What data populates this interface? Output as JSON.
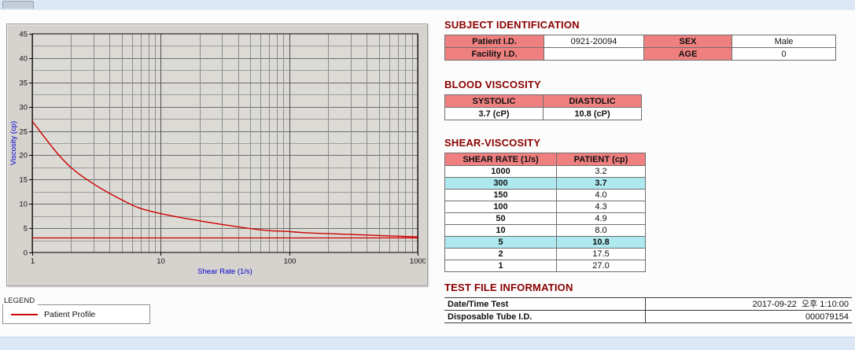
{
  "chart": {
    "legend_title": "LEGEND",
    "legend_series": "Patient Profile"
  },
  "chart_data": {
    "type": "line",
    "xlabel": "Shear Rate (1/s)",
    "ylabel": "Viscosity (cp)",
    "xscale": "log",
    "xlim": [
      1,
      1000
    ],
    "ylim": [
      0,
      45
    ],
    "xticks": [
      1,
      10,
      100,
      1000
    ],
    "yticks": [
      0,
      5,
      10,
      15,
      20,
      25,
      30,
      35,
      40,
      45
    ],
    "grid": true,
    "legend_position": "below-left",
    "x": [
      1,
      2,
      5,
      10,
      50,
      100,
      150,
      300,
      1000
    ],
    "series": [
      {
        "name": "Patient Profile",
        "color": "#cc0000",
        "values": [
          27.0,
          17.5,
          10.8,
          8.0,
          4.9,
          4.3,
          4.0,
          3.7,
          3.2
        ]
      }
    ],
    "reference_line": {
      "y": 3.0,
      "color": "#cc0000"
    }
  },
  "subject": {
    "title": "SUBJECT IDENTIFICATION",
    "rows": [
      {
        "label1": "Patient I.D.",
        "value1": "0921-20094",
        "label2": "SEX",
        "value2": "Male"
      },
      {
        "label1": "Facility I.D.",
        "value1": "",
        "label2": "AGE",
        "value2": "0"
      }
    ]
  },
  "blood_viscosity": {
    "title": "BLOOD VISCOSITY",
    "headers": [
      "SYSTOLIC",
      "DIASTOLIC"
    ],
    "values": [
      "3.7 (cP)",
      "10.8 (cP)"
    ]
  },
  "shear_viscosity": {
    "title": "SHEAR-VISCOSITY",
    "headers": [
      "SHEAR RATE (1/s)",
      "PATIENT (cp)"
    ],
    "rows": [
      {
        "rate": "1000",
        "value": "3.2",
        "highlight": false
      },
      {
        "rate": "300",
        "value": "3.7",
        "highlight": true
      },
      {
        "rate": "150",
        "value": "4.0",
        "highlight": false
      },
      {
        "rate": "100",
        "value": "4.3",
        "highlight": false
      },
      {
        "rate": "50",
        "value": "4.9",
        "highlight": false
      },
      {
        "rate": "10",
        "value": "8.0",
        "highlight": false
      },
      {
        "rate": "5",
        "value": "10.8",
        "highlight": true
      },
      {
        "rate": "2",
        "value": "17.5",
        "highlight": false
      },
      {
        "rate": "1",
        "value": "27.0",
        "highlight": false
      }
    ]
  },
  "test_file": {
    "title": "TEST FILE INFORMATION",
    "rows": [
      {
        "label": "Date/Time Test",
        "value": "2017-09-22  오후 1:10:00"
      },
      {
        "label": "Disposable Tube I.D.",
        "value": "000079154"
      }
    ]
  },
  "colors": {
    "heading": "#8b0000",
    "table_header_bg": "#f08080",
    "highlight_bg": "#aee9ef",
    "series_line": "#cc0000",
    "axis_label": "#0000d0"
  }
}
